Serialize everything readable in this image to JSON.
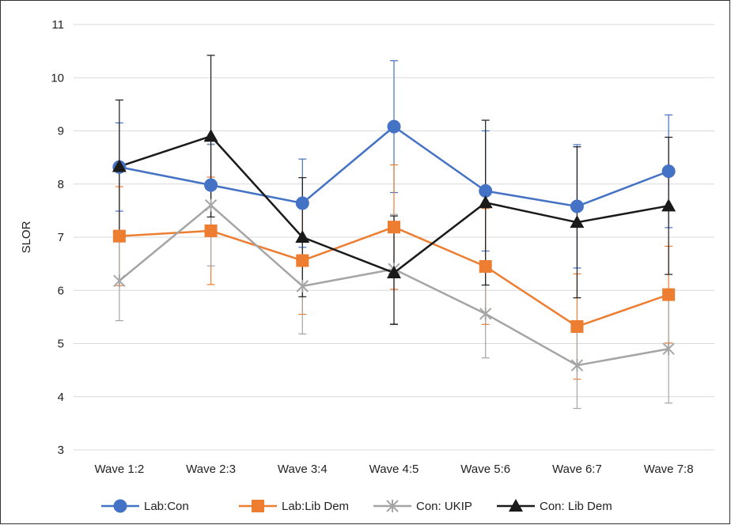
{
  "chart_data": {
    "type": "line",
    "title": "",
    "xlabel": "",
    "ylabel": "SLOR",
    "ylim": [
      3,
      11
    ],
    "yticks": [
      3,
      4,
      5,
      6,
      7,
      8,
      9,
      10,
      11
    ],
    "grid": "horizontal",
    "legend_position": "bottom",
    "categories": [
      "Wave 1:2",
      "Wave 2:3",
      "Wave 3:4",
      "Wave 4:5",
      "Wave 5:6",
      "Wave 6:7",
      "Wave 7:8"
    ],
    "series": [
      {
        "name": "Lab:Con",
        "color": "#4472C4",
        "marker": "circle",
        "values": [
          8.32,
          7.98,
          7.64,
          9.08,
          7.87,
          7.58,
          8.24
        ],
        "error_upper": [
          9.15,
          8.75,
          8.47,
          10.32,
          9.0,
          8.74,
          9.3
        ],
        "error_lower": [
          7.49,
          7.21,
          6.81,
          7.84,
          6.74,
          6.42,
          7.18
        ]
      },
      {
        "name": "Lab:Lib Dem",
        "color": "#ED7D31",
        "marker": "square",
        "values": [
          7.02,
          7.12,
          6.56,
          7.19,
          6.45,
          5.32,
          5.92
        ],
        "error_upper": [
          7.95,
          8.13,
          7.57,
          8.36,
          7.54,
          6.31,
          6.83
        ],
        "error_lower": [
          6.09,
          6.11,
          5.55,
          6.02,
          5.36,
          4.33,
          5.01
        ]
      },
      {
        "name": "Con: UKIP",
        "color": "#A5A5A5",
        "marker": "x",
        "values": [
          6.18,
          7.6,
          6.08,
          6.4,
          5.56,
          4.59,
          4.9
        ],
        "error_upper": [
          6.93,
          8.74,
          6.98,
          7.43,
          6.39,
          5.4,
          5.92
        ],
        "error_lower": [
          5.43,
          6.46,
          5.18,
          5.37,
          4.73,
          3.78,
          3.88
        ]
      },
      {
        "name": "Con: Lib Dem",
        "color": "#1A1A1A",
        "marker": "triangle",
        "values": [
          8.33,
          8.9,
          7.0,
          6.33,
          7.65,
          7.28,
          7.59
        ],
        "error_upper": [
          9.58,
          10.42,
          8.12,
          7.4,
          9.2,
          8.7,
          8.88
        ],
        "error_lower": [
          7.08,
          7.38,
          5.88,
          5.36,
          6.1,
          5.86,
          6.3
        ]
      }
    ]
  }
}
